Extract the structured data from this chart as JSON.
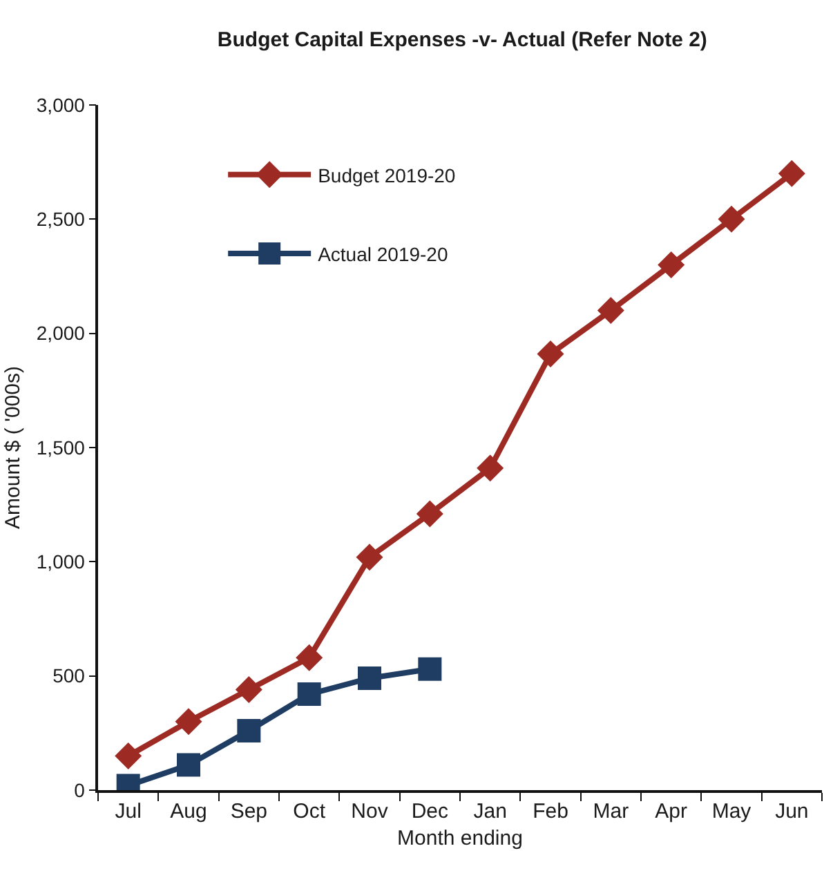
{
  "chart_data": {
    "type": "line",
    "title": "Budget Capital Expenses -v- Actual (Refer Note 2)",
    "xlabel": "Month ending",
    "ylabel": "Amount $ ( '000s)",
    "categories": [
      "Jul",
      "Aug",
      "Sep",
      "Oct",
      "Nov",
      "Dec",
      "Jan",
      "Feb",
      "Mar",
      "Apr",
      "May",
      "Jun"
    ],
    "series": [
      {
        "name": "Budget 2019-20",
        "color": "#9e2a24",
        "marker": "diamond",
        "values": [
          150,
          300,
          440,
          580,
          1020,
          1210,
          1410,
          1910,
          2100,
          2300,
          2500,
          2700
        ]
      },
      {
        "name": "Actual 2019-20",
        "color": "#1f3d63",
        "marker": "square",
        "values": [
          20,
          110,
          260,
          420,
          490,
          530,
          null,
          null,
          null,
          null,
          null,
          null
        ]
      }
    ],
    "ylim": [
      0,
      3000
    ],
    "yticks": [
      0,
      {
        "value": 500,
        "label": "500"
      },
      {
        "value": 1000,
        "label": "1,000"
      },
      {
        "value": 1500,
        "label": "1,500"
      },
      {
        "value": 2000,
        "label": "2,000"
      },
      {
        "value": 2500,
        "label": "2,500"
      },
      {
        "value": 3000,
        "label": "3,000"
      }
    ],
    "grid": false,
    "legend": "top left",
    "line_style": "solid"
  }
}
